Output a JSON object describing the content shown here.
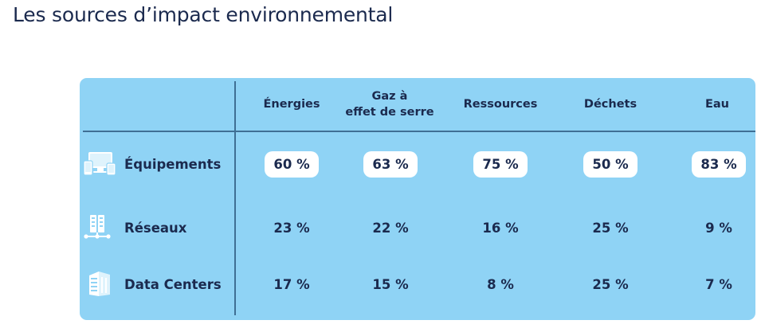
{
  "title": "Les sources d’impact environnemental",
  "colors": {
    "card_background": "#8fd3f5",
    "divider": "#3f6f94",
    "text": "#1b2a4e",
    "highlight_cell": "#ffffff"
  },
  "table": {
    "columns": [
      "Énergies",
      "Gaz à\neffet de serre",
      "Ressources",
      "Déchets",
      "Eau"
    ],
    "rows": [
      {
        "label": "Équipements",
        "icon": "devices-icon",
        "values": [
          "60 %",
          "63 %",
          "75 %",
          "50 %",
          "83 %"
        ],
        "highlighted": true
      },
      {
        "label": "Réseaux",
        "icon": "network-icon",
        "values": [
          "23 %",
          "22 %",
          "16 %",
          "25 %",
          "9 %"
        ],
        "highlighted": false
      },
      {
        "label": "Data Centers",
        "icon": "server-rack-icon",
        "values": [
          "17 %",
          "15 %",
          "8 %",
          "25 %",
          "7 %"
        ],
        "highlighted": false
      }
    ]
  }
}
